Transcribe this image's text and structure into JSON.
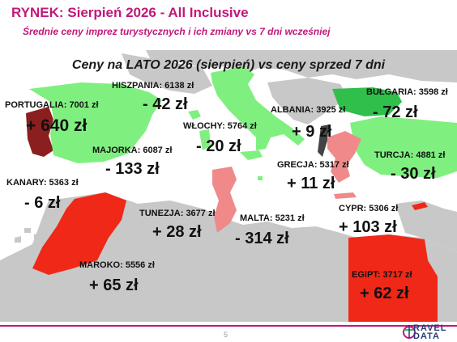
{
  "header": {
    "title": "RYNEK: Sierpień 2026 - All Inclusive",
    "subtitle": "Średnie ceny imprez turystycznych i ich zmiany vs 7 dni wcześniej"
  },
  "map": {
    "title": "Ceny na LATO 2026 (sierpień) vs ceny sprzed 7 dni",
    "colors": {
      "sea": "#ffffff",
      "land": "#c8c8c8",
      "big_drop": "#7ff07f",
      "drop": "#2fbf4a",
      "rise": "#f08a8a",
      "big_rise": "#f02818",
      "dark_rise": "#8b1f1f",
      "albania": "#444444"
    },
    "countries": [
      {
        "id": "portugalia",
        "label": "PORTUGALIA: 7001 zł",
        "change": "+ 640 zł"
      },
      {
        "id": "hiszpania",
        "label": "HISZPANIA: 6138 zł",
        "change": "- 42 zł"
      },
      {
        "id": "majorka",
        "label": "MAJORKA: 6087 zł",
        "change": "- 133 zł"
      },
      {
        "id": "kanary",
        "label": "KANARY: 5363 zł",
        "change": "- 6 zł"
      },
      {
        "id": "maroko",
        "label": "MAROKO: 5556 zł",
        "change": "+ 65 zł"
      },
      {
        "id": "wlochy",
        "label": "WŁOCHY: 5764 zł",
        "change": "- 20 zł"
      },
      {
        "id": "tunezja",
        "label": "TUNEZJA: 3677 zł",
        "change": "+ 28 zł"
      },
      {
        "id": "malta",
        "label": "MALTA: 5231 zł",
        "change": "- 314 zł"
      },
      {
        "id": "albania",
        "label": "ALBANIA: 3925 zł",
        "change": "+ 9 zł"
      },
      {
        "id": "grecja",
        "label": "GRECJA: 5317 zł",
        "change": "+ 11 zł"
      },
      {
        "id": "bulgaria",
        "label": "BUŁGARIA: 3598 zł",
        "change": "- 72 zł"
      },
      {
        "id": "turcja",
        "label": "TURCJA: 4881 zł",
        "change": "- 30 zł"
      },
      {
        "id": "cypr",
        "label": "CYPR: 5306 zł",
        "change": "+ 103 zł"
      },
      {
        "id": "egipt",
        "label": "EGIPT: 3717 zł",
        "change": "+ 62 zł"
      }
    ]
  },
  "footer": {
    "page_number": "5",
    "logo_line1": "RAVEL",
    "logo_line2": "DATA"
  }
}
